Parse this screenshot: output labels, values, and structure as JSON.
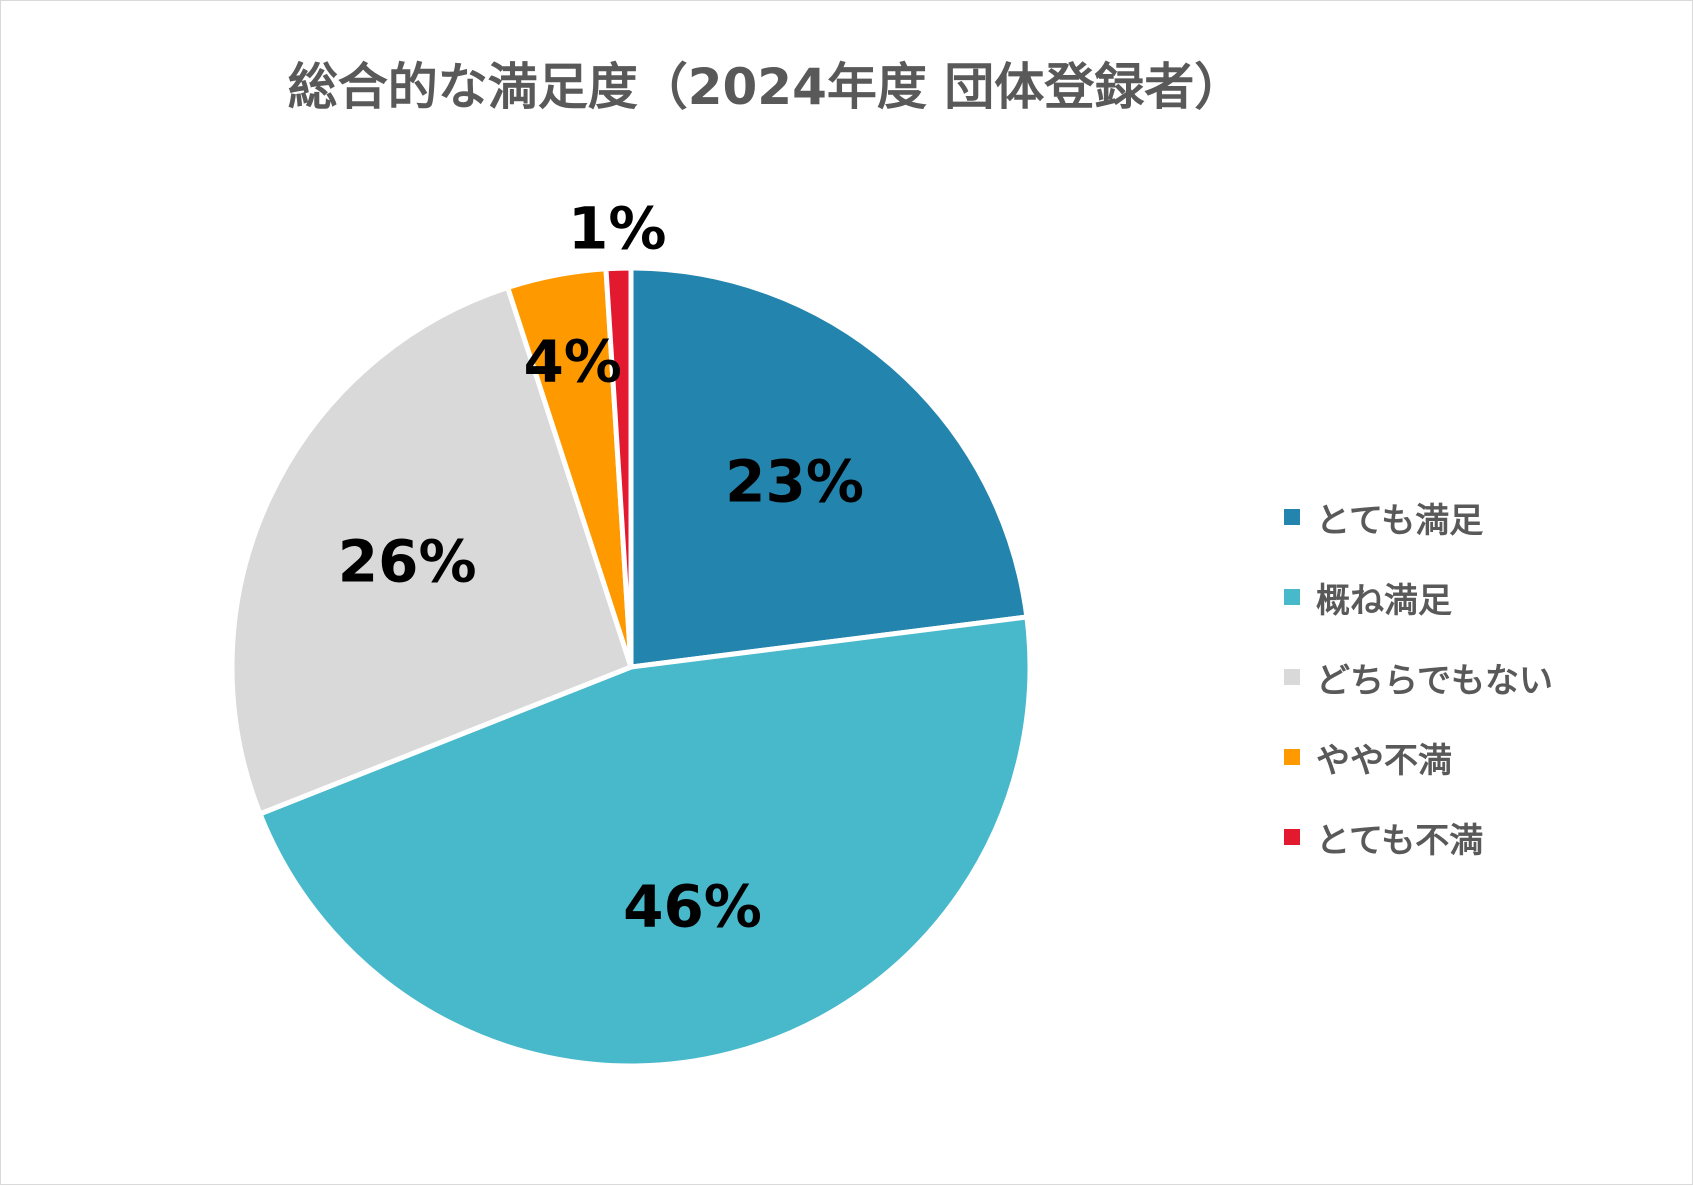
{
  "chart_data": {
    "type": "pie",
    "title": "総合的な満足度（2024年度 団体登録者）",
    "slices": [
      {
        "label": "とても満足",
        "value": 23,
        "display": "23%",
        "color": "#2384ad"
      },
      {
        "label": "概ね満足",
        "value": 46,
        "display": "46%",
        "color": "#48b8cb"
      },
      {
        "label": "どちらでもない",
        "value": 26,
        "display": "26%",
        "color": "#d9d9d9"
      },
      {
        "label": "やや不満",
        "value": 4,
        "display": "4%",
        "color": "#ff9900"
      },
      {
        "label": "とても不満",
        "value": 1,
        "display": "1%",
        "color": "#e31a2f"
      }
    ],
    "legend_position": "right"
  }
}
